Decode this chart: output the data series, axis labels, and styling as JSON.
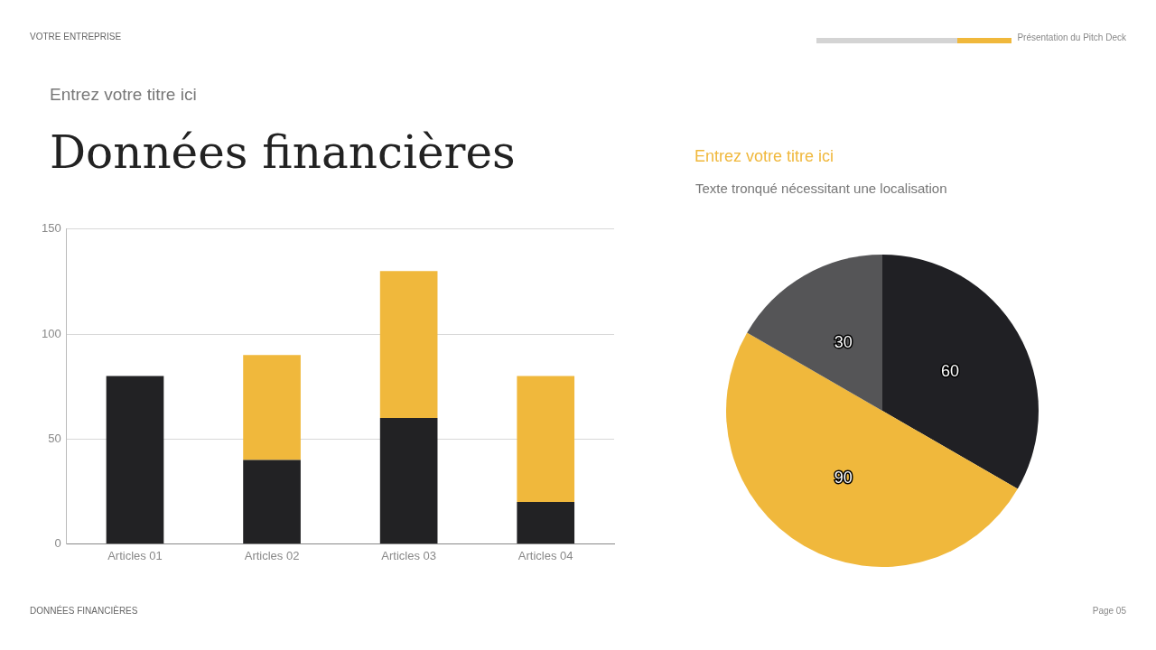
{
  "chart_data": [
    {
      "type": "bar",
      "title": "Données financières",
      "subtitle": "Entrez votre titre ici",
      "categories": [
        "Articles 01",
        "Articles 02",
        "Articles 03",
        "Articles 04"
      ],
      "stacked": true,
      "series": [
        {
          "color": "#222224",
          "values": [
            80,
            40,
            60,
            20
          ]
        },
        {
          "color": "#f0b83c",
          "values": [
            0,
            50,
            70,
            60
          ]
        }
      ],
      "ylim": [
        0,
        150
      ],
      "yticks": [
        0,
        50,
        100,
        150
      ],
      "grid": "y",
      "legend": false,
      "annotations": [
        "VOTRE ENTREPRISE",
        "Présentation du Pitch Deck",
        "DONNÉES FINANCIÈRES",
        "Page 05"
      ]
    },
    {
      "type": "pie",
      "title": "Entrez votre titre ici",
      "subtitle": "Texte tronqué nécessitant une localisation",
      "categories": [
        null,
        null,
        null
      ],
      "values": [
        60,
        90,
        30
      ],
      "colors": [
        "#202024",
        "#f0b83c",
        "#555557"
      ],
      "data_labels": true,
      "legend": false
    }
  ]
}
